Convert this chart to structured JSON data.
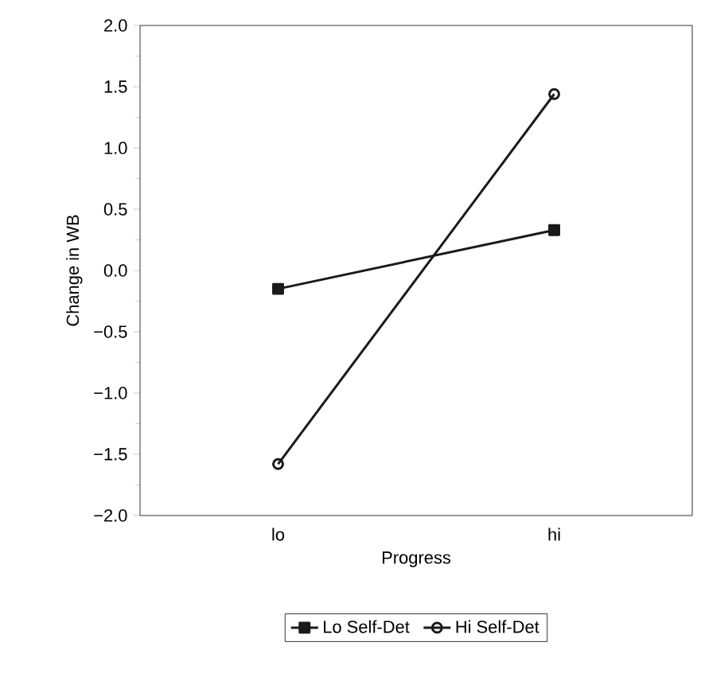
{
  "chart_data": {
    "type": "line",
    "xlabel": "Progress",
    "ylabel": "Change in WB",
    "categories": [
      "lo",
      "hi"
    ],
    "series": [
      {
        "name": "Lo Self-Det",
        "color": "#1a1a1a",
        "marker": "square",
        "values": [
          -0.15,
          0.33
        ]
      },
      {
        "name": "Hi Self-Det",
        "color": "#1a1a1a",
        "marker": "circle",
        "values": [
          -1.58,
          1.44
        ]
      }
    ],
    "ylim": [
      -2.0,
      2.0
    ],
    "yticks": [
      {
        "value": -2.0,
        "label": "−2.0"
      },
      {
        "value": -1.5,
        "label": "−1.5"
      },
      {
        "value": -1.0,
        "label": "−1.0"
      },
      {
        "value": -0.5,
        "label": "−0.5"
      },
      {
        "value": 0.0,
        "label": "0.0"
      },
      {
        "value": 0.5,
        "label": "0.5"
      },
      {
        "value": 1.0,
        "label": "1.0"
      },
      {
        "value": 1.5,
        "label": "1.5"
      },
      {
        "value": 2.0,
        "label": "2.0"
      }
    ],
    "legend": "bottom",
    "grid": false,
    "line_style": "solid"
  }
}
